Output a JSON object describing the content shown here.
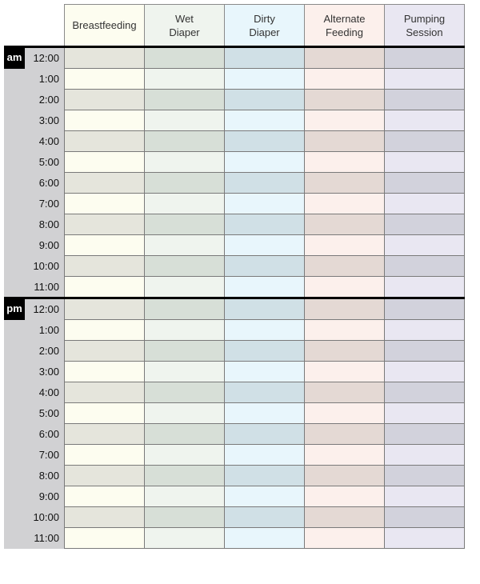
{
  "columns": [
    {
      "label": "Breastfeeding",
      "light": "#fdfdf0",
      "dark": "#e5e5dc"
    },
    {
      "label": "Wet\nDiaper",
      "light": "#eff4ee",
      "dark": "#d7dfd7"
    },
    {
      "label": "Dirty\nDiaper",
      "light": "#e8f6fc",
      "dark": "#d0e0e6"
    },
    {
      "label": "Alternate\nFeeding",
      "light": "#fcf0ec",
      "dark": "#e4d9d4"
    },
    {
      "label": "Pumping\nSession",
      "light": "#e9e7f2",
      "dark": "#d2d2dc"
    }
  ],
  "periods": [
    {
      "label": "am",
      "times": [
        "12:00",
        "1:00",
        "2:00",
        "3:00",
        "4:00",
        "5:00",
        "6:00",
        "7:00",
        "8:00",
        "9:00",
        "10:00",
        "11:00"
      ]
    },
    {
      "label": "pm",
      "times": [
        "12:00",
        "1:00",
        "2:00",
        "3:00",
        "4:00",
        "5:00",
        "6:00",
        "7:00",
        "8:00",
        "9:00",
        "10:00",
        "11:00"
      ]
    }
  ]
}
